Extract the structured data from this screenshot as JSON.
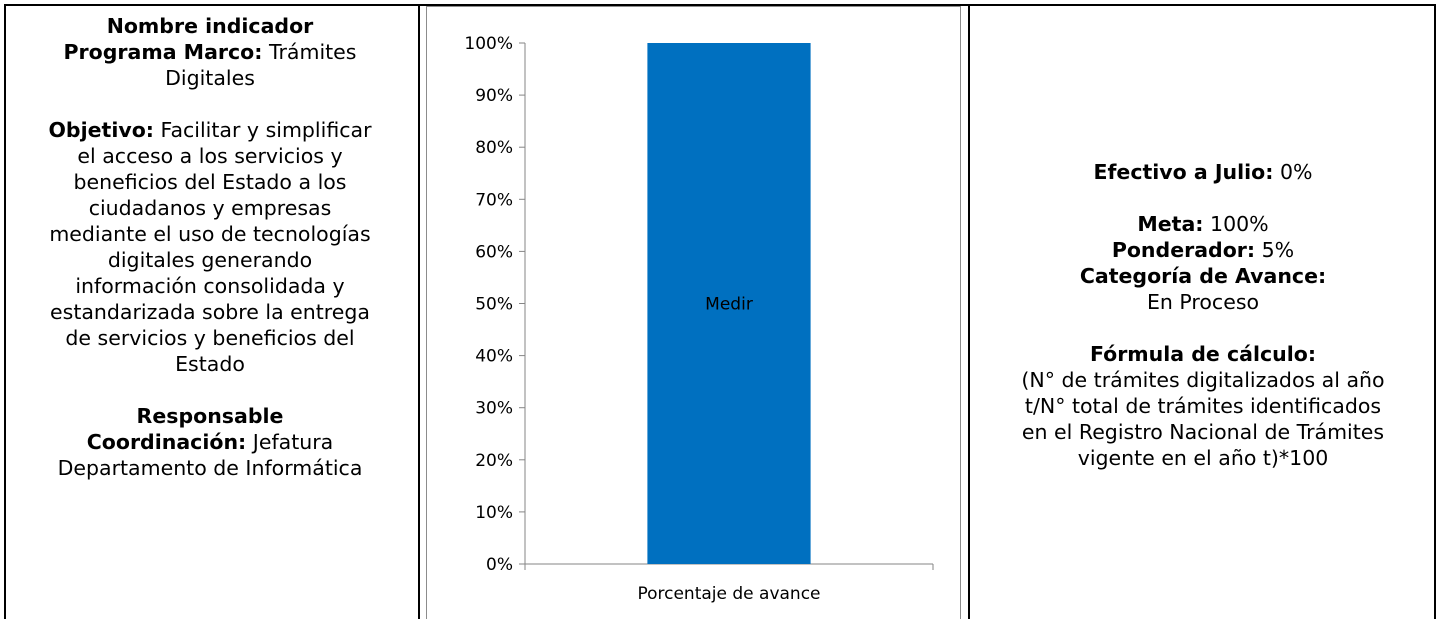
{
  "left": {
    "nombre_label": "Nombre indicador",
    "programa_label": "Programa Marco:",
    "programa_value_1": "Trámites",
    "programa_value_2": "Digitales",
    "objetivo_label": "Objetivo:",
    "objetivo_line_1": "Facilitar y simplificar",
    "objetivo_lines": [
      "el acceso a los servicios y",
      "beneficios del Estado a los",
      "ciudadanos y empresas",
      "mediante el uso de tecnologías",
      "digitales generando",
      "información consolidada y",
      "estandarizada sobre la entrega",
      "de servicios y beneficios del",
      "Estado"
    ],
    "responsable_label": "Responsable",
    "coordinacion_label": "Coordinación:",
    "coordinacion_value_1": "Jefatura",
    "coordinacion_value_2": "Departamento de Informática"
  },
  "right": {
    "efectivo_label": "Efectivo a Julio:",
    "efectivo_value": "0%",
    "meta_label": "Meta:",
    "meta_value": "100%",
    "ponderador_label": "Ponderador:",
    "ponderador_value": "5%",
    "categoria_label": "Categoría de Avance:",
    "categoria_value": "En Proceso",
    "formula_label": "Fórmula de cálculo:",
    "formula_lines": [
      "(N° de trámites digitalizados al año",
      "t/N° total de trámites identificados",
      "en el Registro Nacional de Trámites",
      "vigente en el año t)*100"
    ]
  },
  "chart_data": {
    "type": "bar",
    "categories": [
      "Porcentaje de avance"
    ],
    "values": [
      100
    ],
    "data_labels": [
      "Medir"
    ],
    "ylim": [
      0,
      100
    ],
    "yticks": [
      "0%",
      "10%",
      "20%",
      "30%",
      "40%",
      "50%",
      "60%",
      "70%",
      "80%",
      "90%",
      "100%"
    ],
    "bar_color": "#0070c0",
    "grid": false,
    "legend": "none"
  }
}
